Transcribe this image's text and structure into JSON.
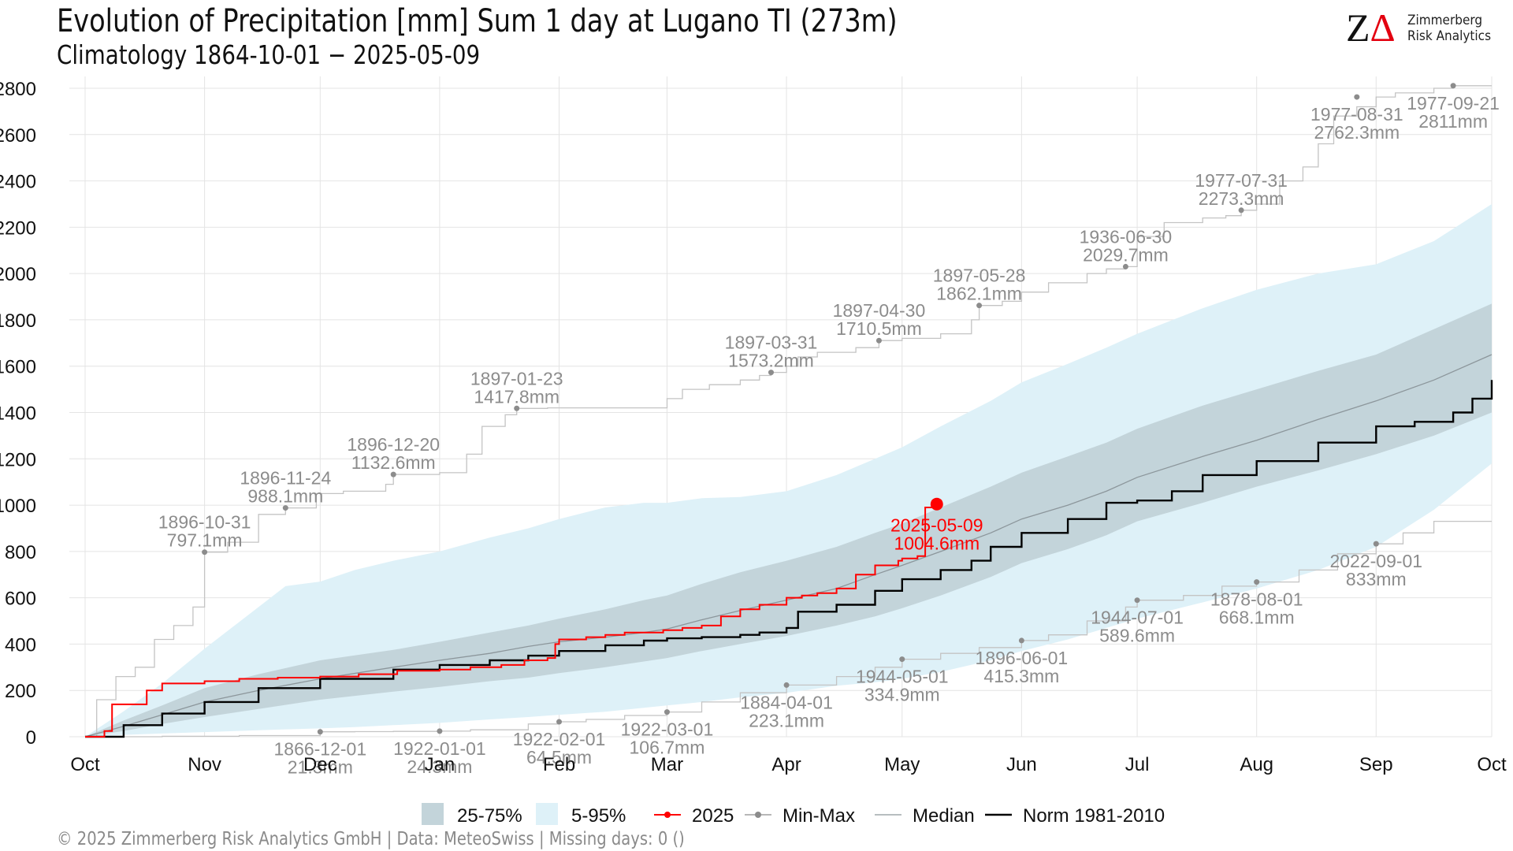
{
  "header": {
    "title": "Evolution of Precipitation [mm] Sum 1 day at Lugano  TI (273m)",
    "subtitle": "Climatology 1864-10-01 − 2025-05-09"
  },
  "logo": {
    "mark_z": "Z",
    "mark_delta": "Δ",
    "line1": "Zimmerberg",
    "line2": "Risk Analytics"
  },
  "footer": {
    "copyright": "©  2025 Zimmerberg Risk Analytics GmbH | Data: MeteoSwiss | Missing days: 0 ()"
  },
  "chart_data": {
    "type": "line",
    "x_unit": "day of hydrological year (0 = Oct 1)",
    "xlim": [
      0,
      365
    ],
    "ylim": [
      0,
      2800
    ],
    "yticks": [
      0,
      200,
      400,
      600,
      800,
      1000,
      1200,
      1400,
      1600,
      1800,
      2000,
      2200,
      2400,
      2600,
      2800
    ],
    "xticks": [
      {
        "label": "Oct",
        "day": 0
      },
      {
        "label": "Nov",
        "day": 31
      },
      {
        "label": "Dec",
        "day": 61
      },
      {
        "label": "Jan",
        "day": 92
      },
      {
        "label": "Feb",
        "day": 123
      },
      {
        "label": "Mar",
        "day": 151
      },
      {
        "label": "Apr",
        "day": 182
      },
      {
        "label": "May",
        "day": 212
      },
      {
        "label": "Jun",
        "day": 243
      },
      {
        "label": "Jul",
        "day": 273
      },
      {
        "label": "Aug",
        "day": 304
      },
      {
        "label": "Sep",
        "day": 335
      },
      {
        "label": "Oct",
        "day": 365
      }
    ],
    "grid": true,
    "colors": {
      "band_5_95": "#def1f8",
      "band_25_75": "#c3d4da",
      "current": "#ff0000",
      "minmax": "#8c8c8c",
      "minmax_line": "#c4c4c4",
      "median": "#8c969b",
      "norm": "#000000"
    },
    "band_5_95": {
      "x": [
        0,
        10,
        20,
        31,
        45,
        52,
        61,
        70,
        80,
        92,
        105,
        115,
        123,
        135,
        145,
        151,
        160,
        170,
        182,
        195,
        205,
        212,
        222,
        235,
        243,
        255,
        265,
        273,
        290,
        304,
        320,
        335,
        350,
        365
      ],
      "lower": [
        0,
        8,
        14,
        20,
        28,
        32,
        36,
        42,
        50,
        60,
        75,
        85,
        95,
        108,
        125,
        135,
        150,
        170,
        190,
        220,
        235,
        250,
        280,
        330,
        370,
        420,
        470,
        510,
        580,
        640,
        720,
        820,
        980,
        1180
      ],
      "upper": [
        0,
        110,
        230,
        380,
        560,
        650,
        670,
        720,
        760,
        800,
        860,
        900,
        940,
        990,
        1010,
        1010,
        1030,
        1035,
        1060,
        1130,
        1200,
        1250,
        1340,
        1450,
        1530,
        1610,
        1680,
        1740,
        1850,
        1930,
        2000,
        2040,
        2140,
        2300
      ]
    },
    "band_25_75": {
      "x": [
        0,
        10,
        20,
        31,
        45,
        61,
        80,
        92,
        105,
        115,
        123,
        135,
        145,
        151,
        160,
        170,
        182,
        195,
        205,
        212,
        222,
        235,
        243,
        255,
        265,
        273,
        290,
        304,
        320,
        335,
        350,
        365
      ],
      "lower": [
        0,
        25,
        55,
        85,
        120,
        160,
        195,
        215,
        240,
        255,
        275,
        300,
        325,
        340,
        370,
        400,
        435,
        480,
        520,
        555,
        610,
        690,
        750,
        810,
        870,
        930,
        1010,
        1080,
        1150,
        1220,
        1300,
        1400
      ],
      "upper": [
        0,
        70,
        135,
        210,
        270,
        330,
        375,
        410,
        450,
        480,
        510,
        550,
        590,
        610,
        660,
        710,
        760,
        820,
        880,
        920,
        990,
        1080,
        1140,
        1210,
        1270,
        1330,
        1430,
        1500,
        1580,
        1650,
        1760,
        1870
      ]
    },
    "series": [
      {
        "name": "Median",
        "x": [
          0,
          10,
          20,
          31,
          45,
          61,
          80,
          92,
          105,
          115,
          123,
          135,
          145,
          151,
          160,
          170,
          182,
          195,
          205,
          212,
          222,
          235,
          243,
          255,
          265,
          273,
          290,
          304,
          320,
          335,
          350,
          365
        ],
        "y": [
          0,
          45,
          95,
          150,
          200,
          250,
          300,
          330,
          360,
          390,
          410,
          430,
          450,
          465,
          505,
          545,
          590,
          640,
          700,
          740,
          800,
          880,
          940,
          1000,
          1060,
          1120,
          1210,
          1280,
          1370,
          1450,
          1540,
          1650
        ]
      },
      {
        "name": "Norm 1981-2010",
        "x": [
          0,
          10,
          20,
          31,
          45,
          61,
          80,
          92,
          105,
          115,
          123,
          135,
          145,
          151,
          160,
          170,
          175,
          182,
          185,
          195,
          205,
          212,
          222,
          230,
          235,
          243,
          255,
          265,
          273,
          282,
          290,
          304,
          320,
          335,
          345,
          355,
          360,
          365
        ],
        "y": [
          0,
          50,
          100,
          150,
          210,
          250,
          290,
          310,
          330,
          350,
          370,
          395,
          415,
          425,
          430,
          440,
          450,
          470,
          540,
          570,
          630,
          680,
          720,
          760,
          820,
          880,
          940,
          1010,
          1020,
          1060,
          1130,
          1190,
          1270,
          1340,
          1360,
          1400,
          1460,
          1540
        ]
      },
      {
        "name": "2025",
        "x": [
          0,
          5,
          7,
          14,
          16,
          20,
          31,
          40,
          50,
          61,
          71,
          81,
          92,
          100,
          108,
          114,
          120,
          122,
          123,
          130,
          135,
          140,
          150,
          155,
          160,
          165,
          170,
          175,
          182,
          186,
          190,
          195,
          200,
          205,
          211,
          212,
          216,
          218,
          221
        ],
        "y": [
          0,
          25,
          140,
          140,
          200,
          230,
          240,
          250,
          255,
          260,
          270,
          285,
          290,
          300,
          310,
          330,
          340,
          400,
          420,
          430,
          440,
          450,
          460,
          470,
          480,
          520,
          550,
          570,
          600,
          610,
          620,
          640,
          700,
          740,
          760,
          770,
          780,
          990,
          1004.6
        ]
      }
    ],
    "current_point": {
      "label_date": "2025-05-09",
      "label_value": "1004.6mm",
      "day": 221,
      "value": 1004.6
    },
    "max_line": {
      "x": [
        0,
        3,
        8,
        13,
        18,
        23,
        28,
        31,
        37,
        45,
        52,
        60,
        67,
        78,
        80,
        92,
        99,
        103,
        109,
        112,
        115,
        120,
        135,
        150,
        151,
        155,
        162,
        170,
        175,
        178,
        182,
        185,
        190,
        200,
        206,
        212,
        222,
        230,
        232,
        238,
        243,
        250,
        260,
        265,
        270,
        273,
        280,
        290,
        296,
        300,
        304,
        310,
        316,
        320,
        324,
        330,
        335,
        340,
        350,
        355,
        365
      ],
      "y": [
        0,
        160,
        260,
        300,
        420,
        480,
        560,
        797.1,
        840,
        960,
        988.1,
        1050,
        1060,
        1090,
        1132.6,
        1140,
        1220,
        1340,
        1390,
        1417.8,
        1417.8,
        1420,
        1420,
        1420,
        1460,
        1500,
        1520,
        1540,
        1560,
        1573.2,
        1600,
        1640,
        1660,
        1680,
        1710.5,
        1720,
        1740,
        1800,
        1862.1,
        1880,
        1920,
        1960,
        2000,
        2020,
        2029.7,
        2160,
        2220,
        2240,
        2250,
        2273.3,
        2300,
        2400,
        2460,
        2560,
        2680,
        2720,
        2762.3,
        2780,
        2800,
        2811,
        2811
      ]
    },
    "min_line": {
      "x": [
        0,
        20,
        40,
        61,
        70,
        80,
        92,
        100,
        115,
        123,
        130,
        140,
        151,
        160,
        170,
        182,
        195,
        205,
        212,
        222,
        232,
        243,
        250,
        260,
        270,
        273,
        285,
        295,
        304,
        315,
        325,
        335,
        342,
        350,
        365
      ],
      "y": [
        0,
        2,
        5,
        21.3,
        22,
        23,
        24.3,
        30,
        55,
        64.5,
        75,
        92,
        106.7,
        150,
        190,
        223.1,
        260,
        300,
        334.9,
        360,
        385,
        415.3,
        440,
        500,
        560,
        589.6,
        610,
        650,
        668.1,
        720,
        790,
        833,
        880,
        930,
        930
      ]
    },
    "extremes": [
      {
        "day": 31,
        "value": 797.1,
        "date": "1896-10-31",
        "amount": "797.1mm",
        "type": "max",
        "label_pos": "above"
      },
      {
        "day": 52,
        "value": 988.1,
        "date": "1896-11-24",
        "amount": "988.1mm",
        "type": "max",
        "label_pos": "above"
      },
      {
        "day": 80,
        "value": 1132.6,
        "date": "1896-12-20",
        "amount": "1132.6mm",
        "type": "max",
        "label_pos": "above"
      },
      {
        "day": 112,
        "value": 1417.8,
        "date": "1897-01-23",
        "amount": "1417.8mm",
        "type": "max",
        "label_pos": "above"
      },
      {
        "day": 178,
        "value": 1573.2,
        "date": "1897-03-31",
        "amount": "1573.2mm",
        "type": "max",
        "label_pos": "above"
      },
      {
        "day": 206,
        "value": 1710.5,
        "date": "1897-04-30",
        "amount": "1710.5mm",
        "type": "max",
        "label_pos": "above"
      },
      {
        "day": 232,
        "value": 1862.1,
        "date": "1897-05-28",
        "amount": "1862.1mm",
        "type": "max",
        "label_pos": "above"
      },
      {
        "day": 270,
        "value": 2029.7,
        "date": "1936-06-30",
        "amount": "2029.7mm",
        "type": "max",
        "label_pos": "above"
      },
      {
        "day": 300,
        "value": 2273.3,
        "date": "1977-07-31",
        "amount": "2273.3mm",
        "type": "max",
        "label_pos": "above"
      },
      {
        "day": 330,
        "value": 2762.3,
        "date": "1977-08-31",
        "amount": "2762.3mm",
        "type": "max",
        "label_pos": "below"
      },
      {
        "day": 355,
        "value": 2811,
        "date": "1977-09-21",
        "amount": "2811mm",
        "type": "max",
        "label_pos": "below"
      },
      {
        "day": 61,
        "value": 21.3,
        "date": "1866-12-01",
        "amount": "21.3mm",
        "type": "min",
        "label_pos": "below"
      },
      {
        "day": 92,
        "value": 24.3,
        "date": "1922-01-01",
        "amount": "24.3mm",
        "type": "min",
        "label_pos": "below"
      },
      {
        "day": 123,
        "value": 64.5,
        "date": "1922-02-01",
        "amount": "64.5mm",
        "type": "min",
        "label_pos": "below"
      },
      {
        "day": 151,
        "value": 106.7,
        "date": "1922-03-01",
        "amount": "106.7mm",
        "type": "min",
        "label_pos": "below"
      },
      {
        "day": 182,
        "value": 223.1,
        "date": "1884-04-01",
        "amount": "223.1mm",
        "type": "min",
        "label_pos": "below"
      },
      {
        "day": 212,
        "value": 334.9,
        "date": "1944-05-01",
        "amount": "334.9mm",
        "type": "min",
        "label_pos": "below"
      },
      {
        "day": 243,
        "value": 415.3,
        "date": "1896-06-01",
        "amount": "415.3mm",
        "type": "min",
        "label_pos": "below"
      },
      {
        "day": 273,
        "value": 589.6,
        "date": "1944-07-01",
        "amount": "589.6mm",
        "type": "min",
        "label_pos": "below"
      },
      {
        "day": 304,
        "value": 668.1,
        "date": "1878-08-01",
        "amount": "668.1mm",
        "type": "min",
        "label_pos": "below"
      },
      {
        "day": 335,
        "value": 833,
        "date": "2022-09-01",
        "amount": "833mm",
        "type": "min",
        "label_pos": "below"
      }
    ],
    "legend": {
      "placement": "bottom",
      "items": [
        {
          "label": "25-75%",
          "kind": "band_25_75"
        },
        {
          "label": "5-95%",
          "kind": "band_5_95"
        },
        {
          "label": "2025",
          "kind": "current"
        },
        {
          "label": "Min-Max",
          "kind": "minmax"
        },
        {
          "label": "Median",
          "kind": "median"
        },
        {
          "label": "Norm 1981-2010",
          "kind": "norm"
        }
      ]
    }
  }
}
